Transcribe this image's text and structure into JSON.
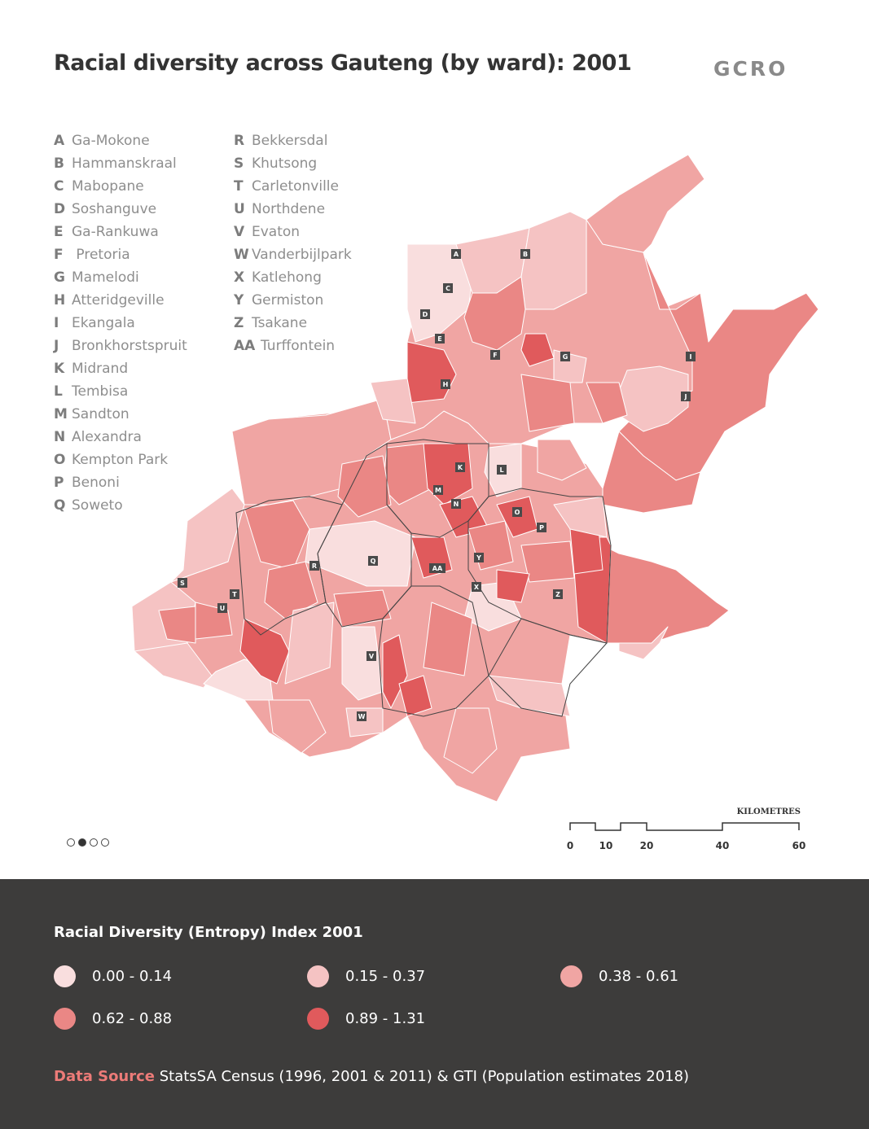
{
  "title": "Racial diversity across Gauteng (by ward): 2001",
  "logo": "GCRO",
  "places_left": [
    {
      "code": "A",
      "name": "Ga-Mokone"
    },
    {
      "code": "B",
      "name": "Hammanskraal"
    },
    {
      "code": "C",
      "name": "Mabopane"
    },
    {
      "code": "D",
      "name": "Soshanguve"
    },
    {
      "code": "E",
      "name": "Ga-Rankuwa"
    },
    {
      "code": "F",
      "name": " Pretoria"
    },
    {
      "code": "G",
      "name": "Mamelodi"
    },
    {
      "code": "H",
      "name": "Atteridgeville"
    },
    {
      "code": "I",
      "name": "Ekangala"
    },
    {
      "code": "J",
      "name": "Bronkhorstspruit"
    },
    {
      "code": "K",
      "name": "Midrand"
    },
    {
      "code": "L",
      "name": "Tembisa"
    },
    {
      "code": "M",
      "name": "Sandton"
    },
    {
      "code": "N",
      "name": "Alexandra"
    },
    {
      "code": "O",
      "name": "Kempton Park"
    },
    {
      "code": "P",
      "name": "Benoni"
    },
    {
      "code": "Q",
      "name": "Soweto"
    }
  ],
  "places_right": [
    {
      "code": "R",
      "name": "Bekkersdal"
    },
    {
      "code": "S",
      "name": "Khutsong"
    },
    {
      "code": "T",
      "name": "Carletonville"
    },
    {
      "code": "U",
      "name": "Northdene"
    },
    {
      "code": "V",
      "name": "Evaton"
    },
    {
      "code": "W",
      "name": "Vanderbijlpark"
    },
    {
      "code": "X",
      "name": "Katlehong"
    },
    {
      "code": "Y",
      "name": "Germiston"
    },
    {
      "code": "Z",
      "name": "Tsakane"
    },
    {
      "code": "AA",
      "name": "Turffontein"
    }
  ],
  "map_markers": [
    "A",
    "B",
    "C",
    "D",
    "E",
    "F",
    "G",
    "H",
    "I",
    "J",
    "K",
    "L",
    "M",
    "N",
    "O",
    "P",
    "Q",
    "R",
    "S",
    "T",
    "U",
    "V",
    "W",
    "X",
    "Y",
    "Z",
    "AA"
  ],
  "scale_bar": {
    "unit": "KILOMETRES",
    "ticks": [
      "0",
      "10",
      "20",
      "40",
      "60"
    ]
  },
  "pagination": {
    "total": 4,
    "active": 2
  },
  "legend": {
    "title": "Racial Diversity (Entropy) Index 2001",
    "classes": [
      {
        "label": "0.00 - 0.14",
        "color": "#f9dede"
      },
      {
        "label": "0.15 - 0.37",
        "color": "#f5c3c3"
      },
      {
        "label": "0.38 - 0.61",
        "color": "#f0a5a3"
      },
      {
        "label": "0.62 - 0.88",
        "color": "#ea8785"
      },
      {
        "label": "0.89 - 1.31",
        "color": "#e05a5c"
      }
    ]
  },
  "source": {
    "label": "Data Source",
    "text": " StatsSA Census (1996, 2001 & 2011) & GTI (Population estimates 2018)"
  }
}
